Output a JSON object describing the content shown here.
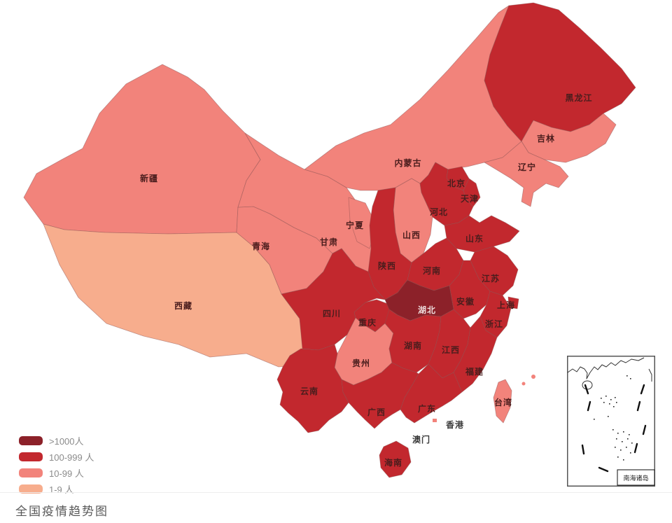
{
  "title": "全国疫情趋势图",
  "legend": {
    "items": [
      {
        "label": ">1000人",
        "color": "#8c2129"
      },
      {
        "label": "100-999 人",
        "color": "#c2282e"
      },
      {
        "label": "10-99 人",
        "color": "#f2837b"
      },
      {
        "label": "1-9 人",
        "color": "#f7ad8d"
      }
    ]
  },
  "inset": {
    "label": "南海诸岛"
  },
  "map": {
    "label_color": "#4a1d1d",
    "level_colors": {
      "1": "#f7ad8d",
      "2": "#f2837b",
      "3": "#c2282e",
      "4": "#8c2129"
    },
    "provinces": [
      {
        "id": "xinjiang",
        "name": "新疆",
        "level": 2
      },
      {
        "id": "tibet",
        "name": "西藏",
        "level": 1
      },
      {
        "id": "qinghai",
        "name": "青海",
        "level": 2
      },
      {
        "id": "gansu",
        "name": "甘肃",
        "level": 2
      },
      {
        "id": "inner_mongolia",
        "name": "内蒙古",
        "level": 2
      },
      {
        "id": "ningxia",
        "name": "宁夏",
        "level": 2
      },
      {
        "id": "heilongjiang",
        "name": "黑龙江",
        "level": 3
      },
      {
        "id": "jilin",
        "name": "吉林",
        "level": 2
      },
      {
        "id": "liaoning",
        "name": "辽宁",
        "level": 2
      },
      {
        "id": "shanxi",
        "name": "山西",
        "level": 2
      },
      {
        "id": "hebei",
        "name": "河北",
        "level": 3
      },
      {
        "id": "beijing",
        "name": "北京",
        "level": 3
      },
      {
        "id": "tianjin",
        "name": "天津",
        "level": 3
      },
      {
        "id": "shandong",
        "name": "山东",
        "level": 3
      },
      {
        "id": "shaanxi",
        "name": "陕西",
        "level": 3
      },
      {
        "id": "henan",
        "name": "河南",
        "level": 3
      },
      {
        "id": "jiangsu",
        "name": "江苏",
        "level": 3
      },
      {
        "id": "anhui",
        "name": "安徽",
        "level": 3
      },
      {
        "id": "shanghai",
        "name": "上海",
        "level": 3
      },
      {
        "id": "zhejiang",
        "name": "浙江",
        "level": 3
      },
      {
        "id": "sichuan",
        "name": "四川",
        "level": 3
      },
      {
        "id": "chongqing",
        "name": "重庆",
        "level": 3
      },
      {
        "id": "hubei",
        "name": "湖北",
        "level": 4,
        "label_color": "#eedcdc"
      },
      {
        "id": "guizhou",
        "name": "贵州",
        "level": 2
      },
      {
        "id": "hunan",
        "name": "湖南",
        "level": 3
      },
      {
        "id": "jiangxi",
        "name": "江西",
        "level": 3
      },
      {
        "id": "fujian",
        "name": "福建",
        "level": 3
      },
      {
        "id": "yunnan",
        "name": "云南",
        "level": 3
      },
      {
        "id": "guangxi",
        "name": "广西",
        "level": 3
      },
      {
        "id": "guangdong",
        "name": "广东",
        "level": 3
      },
      {
        "id": "hongkong",
        "name": "香港",
        "level": 2,
        "label_color": "#3a3a3a"
      },
      {
        "id": "macau",
        "name": "澳门",
        "level": 2,
        "label_color": "#3a3a3a"
      },
      {
        "id": "hainan",
        "name": "海南",
        "level": 3
      },
      {
        "id": "taiwan",
        "name": "台湾",
        "level": 2
      }
    ]
  }
}
